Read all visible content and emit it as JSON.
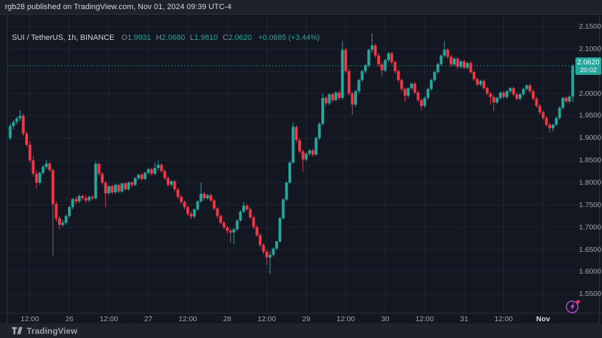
{
  "attribution": {
    "text": "rgb28 published on TradingView.com, Nov 01, 2024 09:39 UTC-4"
  },
  "legend": {
    "symbol": "SUI / TetherUS, 1h, BINANCE",
    "o_label": "O",
    "o": "1.9931",
    "h_label": "H",
    "h": "2.0660",
    "l_label": "L",
    "l": "1.9810",
    "c_label": "C",
    "c": "2.0620",
    "change": "+0.0685 (+3.44%)"
  },
  "footer": {
    "brand": "TradingView"
  },
  "colors": {
    "background": "#131722",
    "panel": "#1e222d",
    "grid": "rgba(163,177,199,0.08)",
    "border": "#2a2e39",
    "up": "#26a69a",
    "down": "#f23645",
    "price_label_bg": "#26a69a",
    "price_line": "#26a69a",
    "axis_text": "#9ba1ab",
    "accent_purple": "#b14bc7",
    "alert_dot": "#f23645"
  },
  "chart_data": {
    "type": "candlestick",
    "title": "SUI / TetherUS, 1h, BINANCE",
    "interval": "1h",
    "ylim": [
      1.55,
      2.15
    ],
    "grid": true,
    "legend_position": "top-left",
    "y_ticks": [
      {
        "price": 2.15,
        "label": "2.1500"
      },
      {
        "price": 2.1,
        "label": "2.1000"
      },
      {
        "price": 2.0,
        "label": "2.0000"
      },
      {
        "price": 1.95,
        "label": "1.9500"
      },
      {
        "price": 1.9,
        "label": "1.9000"
      },
      {
        "price": 1.85,
        "label": "1.8500"
      },
      {
        "price": 1.8,
        "label": "1.8000"
      },
      {
        "price": 1.75,
        "label": "1.7500"
      },
      {
        "price": 1.7,
        "label": "1.7000"
      },
      {
        "price": 1.65,
        "label": "1.6500"
      },
      {
        "price": 1.6,
        "label": "1.6000"
      },
      {
        "price": 1.55,
        "label": "1.5500"
      }
    ],
    "grid_prices": [
      2.15,
      2.1,
      2.05,
      2.0,
      1.95,
      1.9,
      1.85,
      1.8,
      1.75,
      1.7,
      1.65,
      1.6,
      1.55
    ],
    "x_ticks": [
      {
        "index": 6,
        "label": "12:00",
        "strong": false
      },
      {
        "index": 18,
        "label": "26",
        "strong": false
      },
      {
        "index": 30,
        "label": "12:00",
        "strong": false
      },
      {
        "index": 42,
        "label": "27",
        "strong": false
      },
      {
        "index": 54,
        "label": "12:00",
        "strong": false
      },
      {
        "index": 66,
        "label": "28",
        "strong": false
      },
      {
        "index": 78,
        "label": "12:00",
        "strong": false
      },
      {
        "index": 90,
        "label": "29",
        "strong": false
      },
      {
        "index": 102,
        "label": "12:00",
        "strong": false
      },
      {
        "index": 114,
        "label": "30",
        "strong": false
      },
      {
        "index": 126,
        "label": "12:00",
        "strong": false
      },
      {
        "index": 138,
        "label": "31",
        "strong": false
      },
      {
        "index": 150,
        "label": "12:00",
        "strong": false
      },
      {
        "index": 162,
        "label": "Nov",
        "strong": true
      }
    ],
    "price_line": {
      "price": 2.062,
      "label": "2.0620",
      "countdown": "20:02"
    },
    "last_candle": {
      "open": 1.9931,
      "high": 2.066,
      "low": 1.981,
      "close": 2.062,
      "change": "+0.0685 (+3.44%)"
    },
    "candles": [
      [
        1.9,
        1.932,
        1.895,
        1.927
      ],
      [
        1.927,
        1.94,
        1.92,
        1.936
      ],
      [
        1.936,
        1.948,
        1.93,
        1.944
      ],
      [
        1.944,
        1.962,
        1.938,
        1.95
      ],
      [
        1.95,
        1.955,
        1.905,
        1.91
      ],
      [
        1.91,
        1.916,
        1.88,
        1.885
      ],
      [
        1.885,
        1.893,
        1.845,
        1.85
      ],
      [
        1.85,
        1.86,
        1.815,
        1.82
      ],
      [
        1.82,
        1.828,
        1.787,
        1.8
      ],
      [
        1.8,
        1.825,
        1.795,
        1.822
      ],
      [
        1.822,
        1.84,
        1.818,
        1.835
      ],
      [
        1.835,
        1.85,
        1.83,
        1.843
      ],
      [
        1.843,
        1.846,
        1.824,
        1.828
      ],
      [
        1.828,
        1.832,
        1.635,
        1.752
      ],
      [
        1.752,
        1.758,
        1.712,
        1.72
      ],
      [
        1.72,
        1.726,
        1.695,
        1.705
      ],
      [
        1.705,
        1.716,
        1.7,
        1.71
      ],
      [
        1.71,
        1.728,
        1.705,
        1.725
      ],
      [
        1.725,
        1.748,
        1.72,
        1.745
      ],
      [
        1.745,
        1.766,
        1.74,
        1.763
      ],
      [
        1.763,
        1.768,
        1.752,
        1.758
      ],
      [
        1.758,
        1.773,
        1.754,
        1.77
      ],
      [
        1.77,
        1.774,
        1.76,
        1.765
      ],
      [
        1.765,
        1.772,
        1.755,
        1.76
      ],
      [
        1.76,
        1.771,
        1.756,
        1.768
      ],
      [
        1.768,
        1.772,
        1.76,
        1.765
      ],
      [
        1.765,
        1.848,
        1.762,
        1.842
      ],
      [
        1.842,
        1.845,
        1.815,
        1.82
      ],
      [
        1.82,
        1.824,
        1.795,
        1.8
      ],
      [
        1.8,
        1.804,
        1.745,
        1.776
      ],
      [
        1.776,
        1.794,
        1.772,
        1.792
      ],
      [
        1.792,
        1.795,
        1.774,
        1.778
      ],
      [
        1.778,
        1.798,
        1.775,
        1.795
      ],
      [
        1.795,
        1.798,
        1.776,
        1.78
      ],
      [
        1.78,
        1.8,
        1.777,
        1.798
      ],
      [
        1.798,
        1.801,
        1.782,
        1.785
      ],
      [
        1.785,
        1.803,
        1.782,
        1.8
      ],
      [
        1.8,
        1.803,
        1.79,
        1.795
      ],
      [
        1.795,
        1.812,
        1.792,
        1.81
      ],
      [
        1.81,
        1.82,
        1.806,
        1.818
      ],
      [
        1.818,
        1.821,
        1.805,
        1.808
      ],
      [
        1.808,
        1.824,
        1.805,
        1.822
      ],
      [
        1.822,
        1.833,
        1.818,
        1.83
      ],
      [
        1.83,
        1.833,
        1.816,
        1.82
      ],
      [
        1.82,
        1.845,
        1.817,
        1.833
      ],
      [
        1.833,
        1.85,
        1.828,
        1.84
      ],
      [
        1.84,
        1.843,
        1.822,
        1.826
      ],
      [
        1.826,
        1.83,
        1.806,
        1.81
      ],
      [
        1.81,
        1.814,
        1.79,
        1.795
      ],
      [
        1.795,
        1.806,
        1.791,
        1.803
      ],
      [
        1.803,
        1.806,
        1.78,
        1.785
      ],
      [
        1.785,
        1.789,
        1.763,
        1.768
      ],
      [
        1.768,
        1.772,
        1.752,
        1.757
      ],
      [
        1.757,
        1.76,
        1.74,
        1.745
      ],
      [
        1.745,
        1.749,
        1.725,
        1.73
      ],
      [
        1.73,
        1.735,
        1.718,
        1.724
      ],
      [
        1.724,
        1.742,
        1.72,
        1.74
      ],
      [
        1.74,
        1.76,
        1.736,
        1.758
      ],
      [
        1.758,
        1.8,
        1.755,
        1.775
      ],
      [
        1.775,
        1.779,
        1.76,
        1.765
      ],
      [
        1.765,
        1.774,
        1.762,
        1.772
      ],
      [
        1.772,
        1.775,
        1.756,
        1.76
      ],
      [
        1.76,
        1.764,
        1.738,
        1.742
      ],
      [
        1.742,
        1.746,
        1.72,
        1.725
      ],
      [
        1.725,
        1.729,
        1.706,
        1.71
      ],
      [
        1.71,
        1.714,
        1.695,
        1.7
      ],
      [
        1.7,
        1.704,
        1.685,
        1.692
      ],
      [
        1.692,
        1.697,
        1.665,
        1.688
      ],
      [
        1.688,
        1.698,
        1.662,
        1.695
      ],
      [
        1.695,
        1.718,
        1.692,
        1.715
      ],
      [
        1.715,
        1.738,
        1.712,
        1.735
      ],
      [
        1.735,
        1.757,
        1.732,
        1.748
      ],
      [
        1.748,
        1.752,
        1.736,
        1.74
      ],
      [
        1.74,
        1.744,
        1.718,
        1.722
      ],
      [
        1.722,
        1.726,
        1.696,
        1.7
      ],
      [
        1.7,
        1.705,
        1.678,
        1.682
      ],
      [
        1.682,
        1.686,
        1.655,
        1.66
      ],
      [
        1.66,
        1.664,
        1.64,
        1.645
      ],
      [
        1.645,
        1.65,
        1.615,
        1.632
      ],
      [
        1.632,
        1.645,
        1.595,
        1.638
      ],
      [
        1.638,
        1.655,
        1.634,
        1.652
      ],
      [
        1.652,
        1.67,
        1.648,
        1.668
      ],
      [
        1.668,
        1.723,
        1.665,
        1.72
      ],
      [
        1.72,
        1.765,
        1.717,
        1.762
      ],
      [
        1.762,
        1.803,
        1.758,
        1.8
      ],
      [
        1.8,
        1.848,
        1.796,
        1.845
      ],
      [
        1.845,
        1.935,
        1.842,
        1.925
      ],
      [
        1.925,
        1.929,
        1.89,
        1.895
      ],
      [
        1.895,
        1.9,
        1.865,
        1.87
      ],
      [
        1.87,
        1.874,
        1.825,
        1.852
      ],
      [
        1.852,
        1.868,
        1.848,
        1.865
      ],
      [
        1.865,
        1.875,
        1.86,
        1.872
      ],
      [
        1.872,
        1.876,
        1.858,
        1.863
      ],
      [
        1.863,
        1.903,
        1.86,
        1.9
      ],
      [
        1.9,
        1.935,
        1.896,
        1.932
      ],
      [
        1.932,
        2.0,
        1.928,
        1.99
      ],
      [
        1.99,
        1.995,
        1.972,
        1.978
      ],
      [
        1.978,
        2.0,
        1.974,
        1.998
      ],
      [
        1.998,
        2.002,
        1.98,
        1.985
      ],
      [
        1.985,
        2.005,
        1.982,
        2.002
      ],
      [
        2.002,
        2.006,
        1.985,
        1.99
      ],
      [
        1.99,
        2.118,
        1.986,
        2.098
      ],
      [
        2.098,
        2.103,
        2.045,
        2.05
      ],
      [
        2.05,
        2.055,
        1.995,
        2.0
      ],
      [
        2.0,
        2.004,
        1.952,
        1.975
      ],
      [
        1.975,
        2.008,
        1.97,
        2.005
      ],
      [
        2.005,
        2.033,
        2.0,
        2.03
      ],
      [
        2.03,
        2.053,
        2.026,
        2.05
      ],
      [
        2.05,
        2.066,
        2.045,
        2.063
      ],
      [
        2.063,
        2.1,
        2.058,
        2.098
      ],
      [
        2.098,
        2.135,
        2.092,
        2.108
      ],
      [
        2.108,
        2.112,
        2.08,
        2.085
      ],
      [
        2.085,
        2.09,
        2.06,
        2.065
      ],
      [
        2.065,
        2.07,
        2.038,
        2.052
      ],
      [
        2.052,
        2.078,
        2.048,
        2.075
      ],
      [
        2.075,
        2.093,
        2.07,
        2.09
      ],
      [
        2.09,
        2.094,
        2.065,
        2.07
      ],
      [
        2.07,
        2.074,
        2.045,
        2.05
      ],
      [
        2.05,
        2.054,
        2.025,
        2.03
      ],
      [
        2.03,
        2.034,
        2.005,
        2.01
      ],
      [
        2.01,
        2.014,
        1.982,
        1.995
      ],
      [
        1.995,
        2.014,
        1.99,
        2.012
      ],
      [
        2.012,
        2.024,
        2.008,
        2.022
      ],
      [
        2.022,
        2.026,
        1.998,
        2.002
      ],
      [
        2.002,
        2.006,
        1.98,
        1.985
      ],
      [
        1.985,
        1.989,
        1.962,
        1.972
      ],
      [
        1.972,
        1.993,
        1.968,
        1.99
      ],
      [
        1.99,
        2.013,
        1.986,
        2.01
      ],
      [
        2.01,
        2.033,
        2.006,
        2.03
      ],
      [
        2.03,
        2.051,
        2.026,
        2.048
      ],
      [
        2.048,
        2.069,
        2.044,
        2.066
      ],
      [
        2.066,
        2.088,
        2.062,
        2.085
      ],
      [
        2.085,
        2.118,
        2.08,
        2.098
      ],
      [
        2.098,
        2.102,
        2.078,
        2.082
      ],
      [
        2.082,
        2.086,
        2.06,
        2.065
      ],
      [
        2.065,
        2.081,
        2.061,
        2.078
      ],
      [
        2.078,
        2.082,
        2.055,
        2.06
      ],
      [
        2.06,
        2.075,
        2.056,
        2.072
      ],
      [
        2.072,
        2.076,
        2.054,
        2.058
      ],
      [
        2.058,
        2.071,
        2.054,
        2.068
      ],
      [
        2.068,
        2.072,
        2.044,
        2.048
      ],
      [
        2.048,
        2.052,
        2.028,
        2.032
      ],
      [
        2.032,
        2.036,
        2.015,
        2.02
      ],
      [
        2.02,
        2.031,
        2.016,
        2.028
      ],
      [
        2.028,
        2.032,
        2.008,
        2.012
      ],
      [
        2.012,
        2.016,
        1.996,
        2.0
      ],
      [
        2.0,
        2.004,
        1.975,
        1.992
      ],
      [
        1.992,
        1.996,
        1.96,
        1.98
      ],
      [
        1.98,
        1.993,
        1.976,
        1.99
      ],
      [
        1.99,
        2.005,
        1.986,
        2.002
      ],
      [
        2.002,
        2.006,
        1.988,
        1.992
      ],
      [
        1.992,
        2.008,
        1.988,
        2.005
      ],
      [
        2.005,
        2.015,
        2.001,
        2.012
      ],
      [
        2.012,
        2.016,
        1.994,
        1.998
      ],
      [
        1.998,
        2.002,
        1.984,
        1.988
      ],
      [
        1.988,
        2.001,
        1.984,
        1.998
      ],
      [
        1.998,
        2.013,
        1.994,
        2.01
      ],
      [
        2.01,
        2.021,
        2.006,
        2.018
      ],
      [
        2.018,
        2.022,
        2.001,
        2.005
      ],
      [
        2.005,
        2.009,
        1.984,
        1.988
      ],
      [
        1.988,
        1.992,
        1.968,
        1.972
      ],
      [
        1.972,
        1.976,
        1.953,
        1.958
      ],
      [
        1.958,
        1.962,
        1.94,
        1.945
      ],
      [
        1.945,
        1.949,
        1.925,
        1.93
      ],
      [
        1.93,
        1.934,
        1.912,
        1.922
      ],
      [
        1.922,
        1.932,
        1.915,
        1.93
      ],
      [
        1.93,
        1.948,
        1.926,
        1.945
      ],
      [
        1.945,
        1.971,
        1.941,
        1.968
      ],
      [
        1.968,
        1.993,
        1.964,
        1.99
      ],
      [
        1.99,
        1.994,
        1.978,
        1.982
      ],
      [
        1.982,
        1.996,
        1.978,
        1.993
      ],
      [
        1.9931,
        2.066,
        1.981,
        2.062
      ]
    ]
  }
}
